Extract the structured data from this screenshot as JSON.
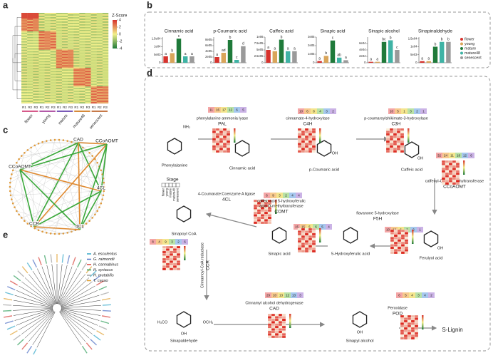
{
  "panel_labels": [
    "a",
    "b",
    "c",
    "d",
    "e"
  ],
  "heatmap": {
    "legend_title": "Z-Score",
    "legend_ticks": [
      4,
      2,
      0,
      -2,
      -4
    ],
    "replicates": [
      "R1",
      "R2",
      "R3",
      "R1",
      "R2",
      "R3",
      "R1",
      "R2",
      "R3",
      "R1",
      "R2",
      "R3",
      "R1",
      "R2",
      "R3"
    ],
    "stages": [
      "flower",
      "young",
      "mature",
      "mature48",
      "senescent"
    ]
  },
  "legend": {
    "names": [
      "flower",
      "young",
      "mature",
      "mature48",
      "senescent"
    ],
    "colors": [
      "#d7322d",
      "#d9a55a",
      "#1f7a3a",
      "#3fb3a5",
      "#9a9a9a"
    ]
  },
  "chart_data": [
    {
      "type": "bar",
      "title": "Cinnamic acid",
      "values": [
        4000,
        6000,
        15000,
        4000,
        4000
      ],
      "letters": [
        "a",
        "b",
        "c",
        "a",
        "a"
      ],
      "ylim": [
        0,
        16000
      ],
      "yticks": [
        0,
        {
          "value": 5000,
          "label": "5e03"
        },
        {
          "value": 10000,
          "label": "1e04"
        },
        {
          "value": 15000,
          "label": "1.5e04"
        }
      ]
    },
    {
      "type": "bar",
      "title": "p-Coumaric acid",
      "values": [
        200000,
        350000,
        800000,
        100000,
        580000
      ],
      "letters": [
        "a",
        "ad",
        "b",
        "c",
        "d"
      ],
      "ylim": [
        0,
        900000
      ],
      "yticks": [
        0,
        {
          "value": 200000,
          "label": "2e05"
        },
        {
          "value": 400000,
          "label": "4e05"
        },
        {
          "value": 600000,
          "label": "6e05"
        },
        {
          "value": 800000,
          "label": "8e05"
        }
      ]
    },
    {
      "type": "bar",
      "title": "Caffeic acid",
      "values": [
        500000,
        450000,
        900000,
        450000,
        450000
      ],
      "letters": [
        "a",
        "a",
        "b",
        "a",
        "a"
      ],
      "ylim": [
        0,
        1000000
      ],
      "yticks": [
        0,
        {
          "value": 250000,
          "label": "2.5e05"
        },
        {
          "value": 500000,
          "label": "5e05"
        },
        {
          "value": 750000,
          "label": "7.5e05"
        },
        {
          "value": 1000000,
          "label": "1e06"
        }
      ]
    },
    {
      "type": "bar",
      "title": "Sinapic acid",
      "values": [
        20000,
        80000,
        260000,
        60000,
        30000
      ],
      "letters": [
        "a",
        "b",
        "c",
        "ab",
        "a"
      ],
      "ylim": [
        0,
        300000
      ],
      "yticks": [
        0,
        {
          "value": 100000,
          "label": "1e05"
        },
        {
          "value": 200000,
          "label": "2e05"
        },
        {
          "value": 300000,
          "label": "3e05"
        }
      ]
    },
    {
      "type": "bar",
      "title": "Sinapic alcohol",
      "values": [
        3000,
        3000,
        65000,
        70000,
        40000
      ],
      "letters": [
        "a",
        "a",
        "bc",
        "b",
        "c"
      ],
      "ylim": [
        0,
        80000
      ],
      "yticks": [
        0,
        {
          "value": 20000,
          "label": "2e04"
        },
        {
          "value": 40000,
          "label": "4e04"
        },
        {
          "value": 60000,
          "label": "6e04"
        }
      ]
    },
    {
      "type": "bar",
      "title": "Sinapinaldehyde",
      "values": [
        1000,
        1000,
        10000,
        13000,
        13000
      ],
      "letters": [
        "a",
        "a",
        "b",
        "b",
        "b"
      ],
      "ylim": [
        0,
        16000
      ],
      "yticks": [
        0,
        {
          "value": 5000,
          "label": "5e03"
        },
        {
          "value": 10000,
          "label": "1e04"
        },
        {
          "value": 15000,
          "label": "1.5e04"
        }
      ]
    }
  ],
  "network": {
    "nodes": [
      "CAD",
      "CCoAOMT",
      "CCoAOMT",
      "4CL",
      "CCR",
      "4CL"
    ]
  },
  "pathway": {
    "stage_title": "Stage",
    "compounds": [
      "Phenylalanine",
      "Cinnamic acid",
      "p-Coumaric acid",
      "Caffeic acid",
      "Ferulyol acid",
      "5-Hydroxyferulic acid",
      "Sinapic acid",
      "Sinapoyl CoA",
      "Sinapaldehyde",
      "Sinapyl alcohol",
      "S-Lignin"
    ],
    "atoms": [
      "NH₂",
      "OH",
      "OH",
      "OH",
      "H₃CO",
      "OCH₃",
      "OH",
      "OH"
    ],
    "enzymes": [
      {
        "name": [
          "phenylalanine ammonia lyase"
        ],
        "abbr": "PAL",
        "badges": [
          "11",
          "16",
          "17",
          "12",
          "6",
          "5"
        ]
      },
      {
        "name": [
          "cinnamate-4-hydroxylase"
        ],
        "abbr": "C4H",
        "badges": [
          "10",
          "6",
          "8",
          "4",
          "3",
          "2"
        ]
      },
      {
        "name": [
          "p-coumaroylshikimate-3-hydroxylase"
        ],
        "abbr": "C3H",
        "badges": [
          "10",
          "5",
          "1",
          "3",
          "2",
          "1"
        ]
      },
      {
        "name": [
          "caffeoyl-CoA O-methyltransferase"
        ],
        "abbr": "CCoAOMT",
        "badges": [
          "32",
          "24",
          "11",
          "18",
          "12",
          "6"
        ]
      },
      {
        "name": [
          "4-Coumarate:Coenzyme A ligase"
        ],
        "abbr": "4CL",
        "badges": [
          "6",
          "9",
          "3",
          "2",
          "4",
          "4"
        ]
      },
      {
        "name": [
          "caffeic acid 5-hydroxyferulic",
          "acid O-methyltransferase"
        ],
        "abbr": "COMT",
        "badges": [
          "15",
          "15",
          "5",
          "6",
          "5",
          "4"
        ]
      },
      {
        "name": [
          "flavanone 5-hydroxylase"
        ],
        "abbr": "F5H",
        "badges": [
          "10",
          "12",
          "6",
          "3",
          "2",
          "1"
        ]
      },
      {
        "name": [
          "Cinnamoyl-CoA reductase"
        ],
        "abbr": "CCR",
        "badges": [
          "8",
          "4",
          "9",
          "3",
          "2",
          "6"
        ]
      },
      {
        "name": [
          "Cinnamyl alcohol dehydrogenase"
        ],
        "abbr": "CAD",
        "badges": [
          "29",
          "10",
          "13",
          "12",
          "13",
          "3"
        ]
      },
      {
        "name": [
          "Peroxidase"
        ],
        "abbr": "POD",
        "badges": [
          "6",
          "5",
          "4",
          "3",
          "4",
          "2"
        ]
      }
    ]
  },
  "tree": {
    "species": [
      {
        "name": "A. esculentus",
        "color": "#35a8c9"
      },
      {
        "name": "G. raimondii",
        "color": "#4d6fc4"
      },
      {
        "name": "H. cannabinus",
        "color": "#d8423a"
      },
      {
        "name": "H. syriacus",
        "color": "#2f9e5a"
      },
      {
        "name": "H. mutabilis",
        "color": "#a0a0a0"
      },
      {
        "name": "T. cacao",
        "color": "#e0a030"
      }
    ]
  }
}
